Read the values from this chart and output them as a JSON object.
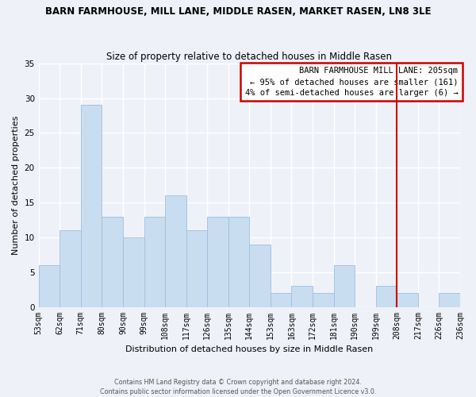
{
  "title": "BARN FARMHOUSE, MILL LANE, MIDDLE RASEN, MARKET RASEN, LN8 3LE",
  "subtitle": "Size of property relative to detached houses in Middle Rasen",
  "xlabel": "Distribution of detached houses by size in Middle Rasen",
  "ylabel": "Number of detached properties",
  "bin_labels": [
    "53sqm",
    "62sqm",
    "71sqm",
    "80sqm",
    "90sqm",
    "99sqm",
    "108sqm",
    "117sqm",
    "126sqm",
    "135sqm",
    "144sqm",
    "153sqm",
    "163sqm",
    "172sqm",
    "181sqm",
    "190sqm",
    "199sqm",
    "208sqm",
    "217sqm",
    "226sqm",
    "236sqm"
  ],
  "bar_heights": [
    6,
    11,
    29,
    13,
    10,
    13,
    16,
    11,
    13,
    13,
    9,
    2,
    3,
    2,
    6,
    0,
    3,
    2,
    0,
    2
  ],
  "bar_color": "#c9ddf0",
  "bar_edge_color": "#a0bedd",
  "vline_x_index": 17,
  "vline_color": "#cc0000",
  "ylim": [
    0,
    35
  ],
  "yticks": [
    0,
    5,
    10,
    15,
    20,
    25,
    30,
    35
  ],
  "annotation_title": "BARN FARMHOUSE MILL LANE: 205sqm",
  "annotation_line1": "← 95% of detached houses are smaller (161)",
  "annotation_line2": "4% of semi-detached houses are larger (6) →",
  "footer_line1": "Contains HM Land Registry data © Crown copyright and database right 2024.",
  "footer_line2": "Contains public sector information licensed under the Open Government Licence v3.0.",
  "bg_color": "#eef2f8",
  "grid_color": "#ffffff",
  "title_fontsize": 8.5,
  "subtitle_fontsize": 8.5,
  "ylabel_fontsize": 8,
  "xlabel_fontsize": 8,
  "tick_fontsize": 7,
  "ann_fontsize": 7.5,
  "footer_fontsize": 5.8
}
